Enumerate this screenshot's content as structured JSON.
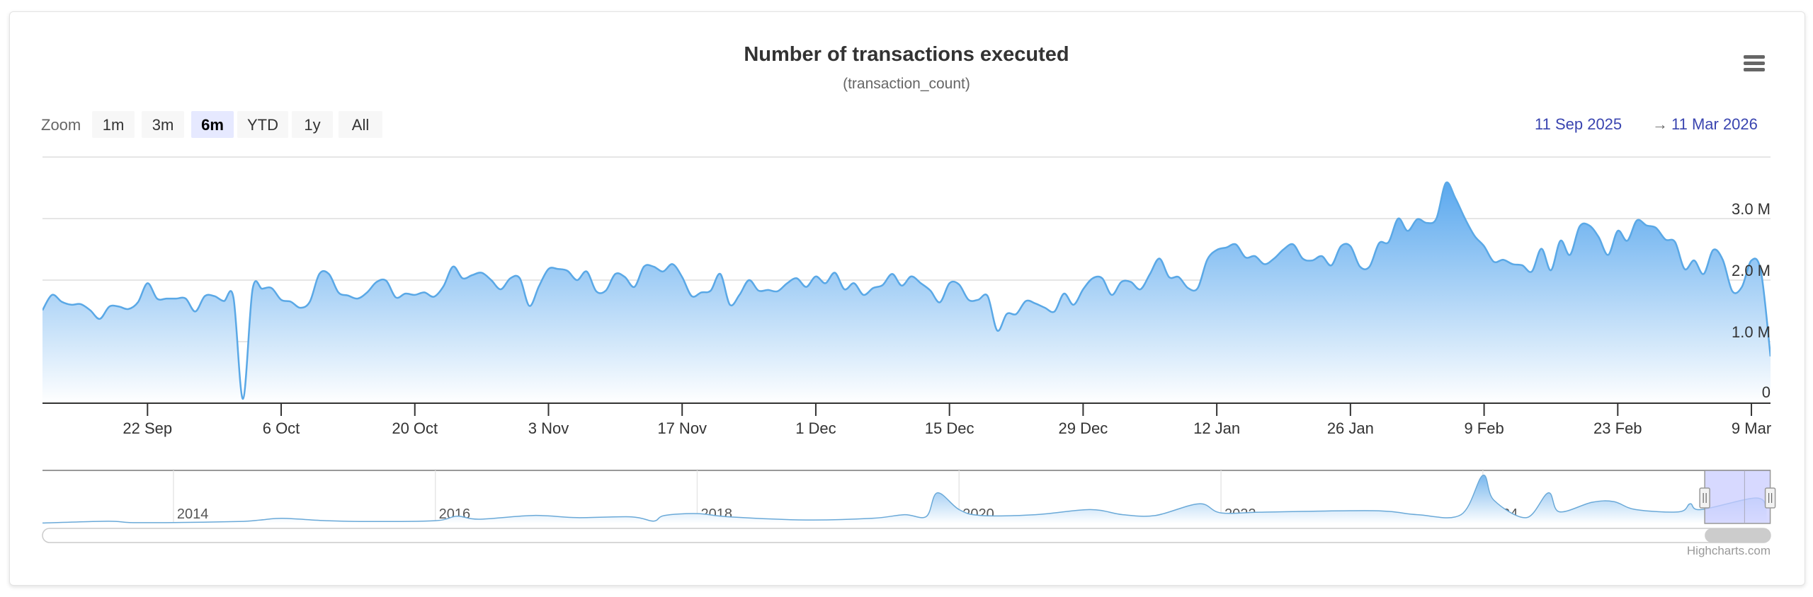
{
  "title": "Number of transactions executed",
  "subtitle": "(transaction_count)",
  "menu_icon": "hamburger-menu-icon",
  "range_selector": {
    "label": "Zoom",
    "buttons": [
      "1m",
      "3m",
      "6m",
      "YTD",
      "1y",
      "All"
    ],
    "selected": "6m",
    "from": "11 Sep 2025",
    "arrow": "→",
    "to": "11 Mar 2026"
  },
  "credits": "Highcharts.com",
  "colors": {
    "line": "#5aa8e6",
    "fill_top": "#5aa8ee",
    "range_text": "#3a45b0",
    "selection": "#c9ccff"
  },
  "chart_data": {
    "type": "area",
    "title": "Number of transactions executed",
    "subtitle": "(transaction_count)",
    "yunit": "M",
    "ylim": [
      0,
      4
    ],
    "yticks": [
      {
        "v": 0,
        "label": "0"
      },
      {
        "v": 1,
        "label": "1.0 M"
      },
      {
        "v": 2,
        "label": "2.0 M"
      },
      {
        "v": 3,
        "label": "3.0 M"
      }
    ],
    "xlim": [
      "2025-09-11",
      "2026-03-11"
    ],
    "xticks": [
      {
        "date": "2025-09-22",
        "label": "22 Sep"
      },
      {
        "date": "2025-10-06",
        "label": "6 Oct"
      },
      {
        "date": "2025-10-20",
        "label": "20 Oct"
      },
      {
        "date": "2025-11-03",
        "label": "3 Nov"
      },
      {
        "date": "2025-11-17",
        "label": "17 Nov"
      },
      {
        "date": "2025-12-01",
        "label": "1 Dec"
      },
      {
        "date": "2025-12-15",
        "label": "15 Dec"
      },
      {
        "date": "2025-12-29",
        "label": "29 Dec"
      },
      {
        "date": "2026-01-12",
        "label": "12 Jan"
      },
      {
        "date": "2026-01-26",
        "label": "26 Jan"
      },
      {
        "date": "2026-02-09",
        "label": "9 Feb"
      },
      {
        "date": "2026-02-23",
        "label": "23 Feb"
      },
      {
        "date": "2026-03-09",
        "label": "9 Mar"
      }
    ],
    "grid": true,
    "daily_series_millions": [
      {
        "start": "2025-09-11",
        "values": [
          1.51,
          1.76,
          1.65,
          1.6,
          1.61,
          1.51,
          1.37,
          1.57,
          1.57,
          1.53,
          1.64,
          1.95,
          1.7,
          1.7,
          1.7,
          1.7,
          1.49,
          1.74,
          1.74,
          1.66
        ]
      },
      {
        "start": "2025-10-01",
        "values": [
          1.72,
          0.07,
          1.85,
          1.86,
          1.87,
          1.68,
          1.65,
          1.55,
          1.65,
          2.1,
          2.1,
          1.8,
          1.75,
          1.7,
          1.8,
          1.97,
          1.99,
          1.72,
          1.78,
          1.76,
          1.8,
          1.73,
          1.9,
          2.22,
          2.03,
          2.08,
          2.12,
          2.0,
          1.85,
          2.03,
          2.03
        ]
      },
      {
        "start": "2025-11-01",
        "values": [
          1.58,
          1.9,
          2.18,
          2.18,
          2.15,
          2.0,
          2.14,
          1.82,
          1.83,
          2.1,
          2.05,
          1.89,
          2.22,
          2.22,
          2.14,
          2.26,
          2.05,
          1.74,
          1.8,
          1.83,
          2.1,
          1.6,
          1.76,
          2.0,
          1.83,
          1.84,
          1.82,
          1.95,
          2.03,
          1.89
        ]
      },
      {
        "start": "2025-12-01",
        "values": [
          2.06,
          1.95,
          2.12,
          1.85,
          1.95,
          1.76,
          1.87,
          1.92,
          2.1,
          1.91,
          2.06,
          1.95,
          1.83,
          1.64,
          1.95,
          1.93,
          1.68,
          1.68,
          1.74,
          1.18,
          1.45,
          1.45,
          1.66,
          1.62,
          1.55,
          1.49,
          1.78,
          1.6,
          1.85,
          2.03,
          2.03
        ]
      },
      {
        "start": "2026-01-01",
        "values": [
          1.76,
          1.97,
          1.97,
          1.85,
          2.1,
          2.35,
          2.05,
          2.05,
          1.87,
          1.87,
          2.33,
          2.49,
          2.53,
          2.58,
          2.37,
          2.39,
          2.26,
          2.35,
          2.5,
          2.58,
          2.35,
          2.32,
          2.39,
          2.24,
          2.55,
          2.55,
          2.22,
          2.22,
          2.6,
          2.62,
          3.0
        ]
      },
      {
        "start": "2026-02-01",
        "values": [
          2.8,
          2.99,
          2.93,
          3.0,
          3.58,
          3.33,
          3.0,
          2.72,
          2.55,
          2.3,
          2.33,
          2.26,
          2.24,
          2.14,
          2.51,
          2.16,
          2.64,
          2.41,
          2.87,
          2.89,
          2.7,
          2.41,
          2.8,
          2.64,
          2.97,
          2.89,
          2.85,
          2.66
        ]
      },
      {
        "start": "2026-03-01",
        "values": [
          2.62,
          2.18,
          2.32,
          2.1,
          2.49,
          2.33,
          1.82,
          1.89,
          2.32,
          2.14,
          0.76
        ]
      }
    ],
    "navigator": {
      "xlim": [
        "2013-01",
        "2026-03"
      ],
      "year_labels": [
        "2014",
        "2016",
        "2018",
        "2020",
        "2022",
        "2024"
      ],
      "selected_range": [
        "2025-09-11",
        "2026-03-11"
      ],
      "points_millions": [
        [
          "2013-01",
          0.06
        ],
        [
          "2013-07",
          0.3
        ],
        [
          "2013-09",
          0.13
        ],
        [
          "2014-01",
          0.13
        ],
        [
          "2014-07",
          0.26
        ],
        [
          "2014-09",
          0.48
        ],
        [
          "2014-11",
          0.7
        ],
        [
          "2015-03",
          0.38
        ],
        [
          "2015-07",
          0.26
        ],
        [
          "2016-01",
          0.38
        ],
        [
          "2016-03",
          1.0
        ],
        [
          "2016-05",
          0.58
        ],
        [
          "2016-10",
          1.1
        ],
        [
          "2017-02",
          0.8
        ],
        [
          "2017-07",
          0.9
        ],
        [
          "2017-09",
          0.32
        ],
        [
          "2017-10",
          1.1
        ],
        [
          "2018-01",
          1.35
        ],
        [
          "2018-04",
          0.9
        ],
        [
          "2018-11",
          0.48
        ],
        [
          "2019-05",
          0.7
        ],
        [
          "2019-08",
          1.2
        ],
        [
          "2019-10",
          0.96
        ],
        [
          "2019-11",
          4.2
        ],
        [
          "2020-01",
          1.9
        ],
        [
          "2020-03",
          1.1
        ],
        [
          "2020-08",
          1.2
        ],
        [
          "2021-01",
          1.9
        ],
        [
          "2021-04",
          1.2
        ],
        [
          "2021-07",
          1.1
        ],
        [
          "2021-11",
          2.7
        ],
        [
          "2022-01",
          1.45
        ],
        [
          "2022-05",
          1.55
        ],
        [
          "2023-03",
          1.75
        ],
        [
          "2023-07",
          1.2
        ],
        [
          "2023-11",
          1.2
        ],
        [
          "2024-01",
          6.6
        ],
        [
          "2024-02",
          3.2
        ],
        [
          "2024-05",
          0.8
        ],
        [
          "2024-07",
          4.2
        ],
        [
          "2024-08",
          1.6
        ],
        [
          "2024-11",
          2.9
        ],
        [
          "2025-01",
          3.0
        ],
        [
          "2025-03",
          1.9
        ],
        [
          "2025-07",
          1.6
        ],
        [
          "2025-08",
          2.7
        ],
        [
          "2025-09",
          1.9
        ],
        [
          "2026-02",
          3.5
        ],
        [
          "2026-03",
          2.1
        ]
      ]
    }
  }
}
